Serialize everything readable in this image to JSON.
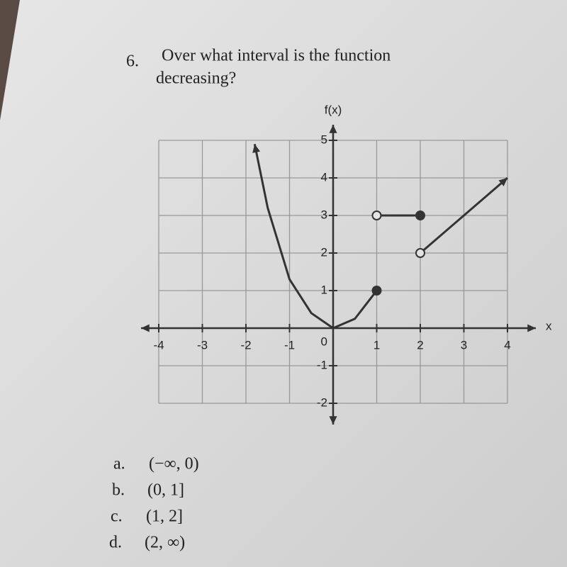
{
  "question": {
    "number": "6.",
    "lines": [
      "Over what interval is the function",
      "decreasing?"
    ]
  },
  "graph": {
    "y_label": "f(x)",
    "x_label": "x",
    "xlim": [
      -4,
      4
    ],
    "ylim": [
      -2,
      5
    ],
    "xticks": [
      -4,
      -3,
      -2,
      -1,
      1,
      2,
      3,
      4
    ],
    "yticks": [
      -2,
      -1,
      1,
      2,
      3,
      4,
      5
    ],
    "origin_label": "0",
    "curves": [
      [
        [
          -1.8,
          4.9
        ],
        [
          -1.5,
          3.2
        ],
        [
          -1,
          1.3
        ],
        [
          -0.5,
          0.4
        ],
        [
          0,
          0
        ],
        [
          0.5,
          0.25
        ],
        [
          1,
          1
        ]
      ],
      [
        [
          1,
          3
        ],
        [
          2,
          3
        ]
      ],
      [
        [
          2,
          2
        ],
        [
          4,
          4
        ]
      ]
    ],
    "open_points": [
      [
        1,
        3
      ],
      [
        2,
        2
      ]
    ],
    "closed_points": [
      [
        1,
        1
      ],
      [
        2,
        3
      ]
    ]
  },
  "choices": [
    {
      "letter": "a.",
      "text": "(−∞, 0)"
    },
    {
      "letter": "b.",
      "text": "(0, 1]"
    },
    {
      "letter": "c.",
      "text": "(1, 2]"
    },
    {
      "letter": "d.",
      "text": "(2, ∞)"
    }
  ]
}
